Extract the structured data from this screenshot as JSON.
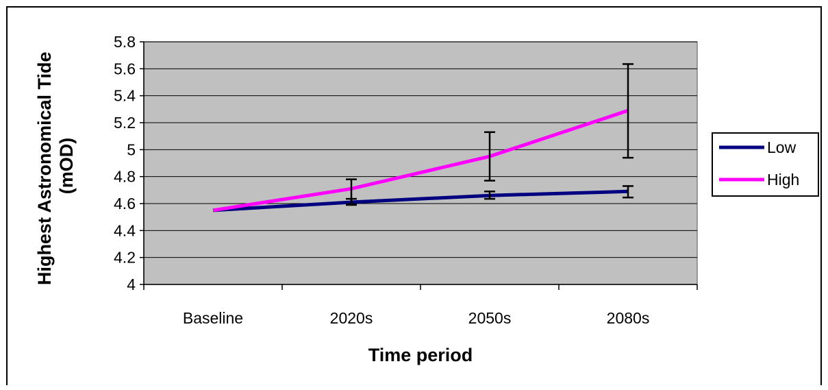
{
  "chart_data": {
    "type": "line",
    "title": "",
    "xlabel": "Time period",
    "ylabel": "Highest Astronomical Tide (mOD)",
    "ylabel_lines": [
      "Highest Astronomical Tide",
      "(mOD)"
    ],
    "categories": [
      "Baseline",
      "2020s",
      "2050s",
      "2080s"
    ],
    "ylim": [
      4,
      5.8
    ],
    "yticks": [
      4,
      4.2,
      4.4,
      4.6,
      4.8,
      5,
      5.2,
      5.4,
      5.6,
      5.8
    ],
    "ytick_labels": [
      "4",
      "4.2",
      "4.4",
      "4.6",
      "4.8",
      "5",
      "5.2",
      "5.4",
      "5.6",
      "5.8"
    ],
    "grid": true,
    "plot_background": "#c0c0c0",
    "legend_position": "right",
    "series": [
      {
        "name": "Low",
        "color": "#000080",
        "values": [
          4.55,
          4.61,
          4.66,
          4.69
        ],
        "error_low": [
          null,
          4.59,
          4.635,
          4.645
        ],
        "error_high": [
          null,
          4.635,
          4.69,
          4.73
        ]
      },
      {
        "name": "High",
        "color": "#ff00ff",
        "values": [
          4.55,
          4.71,
          4.95,
          5.29
        ],
        "error_low": [
          null,
          4.595,
          4.77,
          4.94
        ],
        "error_high": [
          null,
          4.78,
          5.13,
          5.635
        ]
      }
    ]
  }
}
